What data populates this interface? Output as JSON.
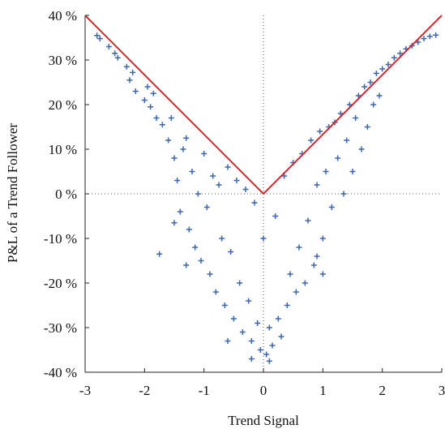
{
  "chart_data": {
    "type": "scatter",
    "title": "",
    "xlabel": "Trend Signal",
    "ylabel": "P&L of a Trend Follower",
    "xlim": [
      -3,
      3
    ],
    "ylim": [
      -40,
      40
    ],
    "x_ticks": [
      -3,
      -2,
      -1,
      0,
      1,
      2,
      3
    ],
    "x_tick_labels": [
      "-3",
      "-2",
      "-1",
      "0",
      "1",
      "2",
      "3"
    ],
    "y_ticks": [
      40,
      30,
      20,
      10,
      0,
      -10,
      -20,
      -30,
      -40
    ],
    "y_tick_labels": [
      "40 %",
      "30 %",
      "20 %",
      "10 %",
      "0 %",
      "-10 %",
      "-20 %",
      "-30 %",
      "-40 %"
    ],
    "grid": false,
    "zero_lines": true,
    "series": [
      {
        "marker": "plus",
        "color": "#3a67ad",
        "points": [
          [
            -2.8,
            35.5
          ],
          [
            -2.75,
            34.8
          ],
          [
            -2.6,
            33
          ],
          [
            -2.5,
            31.5
          ],
          [
            -2.45,
            30.5
          ],
          [
            -2.3,
            28.5
          ],
          [
            -2.25,
            25.5
          ],
          [
            -2.2,
            27.2
          ],
          [
            -2.15,
            23
          ],
          [
            -2.0,
            21
          ],
          [
            -1.95,
            24
          ],
          [
            -1.9,
            19.5
          ],
          [
            -1.85,
            22.5
          ],
          [
            -1.8,
            17
          ],
          [
            -1.7,
            15.5
          ],
          [
            -1.6,
            12
          ],
          [
            -1.55,
            17
          ],
          [
            -1.5,
            8
          ],
          [
            -1.45,
            3
          ],
          [
            -1.4,
            -4
          ],
          [
            -1.35,
            10
          ],
          [
            -1.3,
            12.5
          ],
          [
            -1.25,
            -8
          ],
          [
            -1.2,
            5
          ],
          [
            -1.15,
            -12
          ],
          [
            -1.1,
            0
          ],
          [
            -1.05,
            -15
          ],
          [
            -1.0,
            9
          ],
          [
            -0.95,
            -3
          ],
          [
            -0.9,
            -18
          ],
          [
            -0.85,
            4
          ],
          [
            -0.8,
            -22
          ],
          [
            -0.75,
            2
          ],
          [
            -0.7,
            -10
          ],
          [
            -0.65,
            -25
          ],
          [
            -0.6,
            6
          ],
          [
            -0.55,
            -13
          ],
          [
            -0.5,
            -28
          ],
          [
            -0.45,
            3
          ],
          [
            -0.4,
            -20
          ],
          [
            -0.35,
            -31
          ],
          [
            -0.3,
            1
          ],
          [
            -0.25,
            -24
          ],
          [
            -0.2,
            -33
          ],
          [
            -0.15,
            -2
          ],
          [
            -0.1,
            -29
          ],
          [
            -0.05,
            -35
          ],
          [
            0.0,
            -10
          ],
          [
            0.05,
            -36
          ],
          [
            0.1,
            -30
          ],
          [
            0.15,
            -34
          ],
          [
            0.2,
            -5
          ],
          [
            0.25,
            -28
          ],
          [
            0.3,
            -32
          ],
          [
            0.35,
            4
          ],
          [
            0.4,
            -25
          ],
          [
            0.45,
            -18
          ],
          [
            0.5,
            7
          ],
          [
            0.55,
            -22
          ],
          [
            0.6,
            -12
          ],
          [
            0.65,
            9
          ],
          [
            0.7,
            -20
          ],
          [
            0.75,
            -6
          ],
          [
            0.8,
            12
          ],
          [
            0.85,
            -16
          ],
          [
            0.9,
            2
          ],
          [
            0.95,
            14
          ],
          [
            1.0,
            -10
          ],
          [
            1.05,
            5
          ],
          [
            1.1,
            15
          ],
          [
            1.15,
            -3
          ],
          [
            1.2,
            16
          ],
          [
            1.25,
            8
          ],
          [
            1.3,
            18
          ],
          [
            1.35,
            0
          ],
          [
            1.4,
            12
          ],
          [
            1.45,
            20
          ],
          [
            1.5,
            5
          ],
          [
            1.55,
            17
          ],
          [
            1.6,
            22
          ],
          [
            1.65,
            10
          ],
          [
            1.7,
            24
          ],
          [
            1.75,
            15
          ],
          [
            1.8,
            25
          ],
          [
            1.85,
            20
          ],
          [
            1.9,
            27
          ],
          [
            1.95,
            22
          ],
          [
            2.0,
            28
          ],
          [
            2.1,
            29
          ],
          [
            2.2,
            30.5
          ],
          [
            2.3,
            31.5
          ],
          [
            2.4,
            32.5
          ],
          [
            2.5,
            33.2
          ],
          [
            2.6,
            34
          ],
          [
            2.7,
            34.8
          ],
          [
            2.8,
            35.3
          ],
          [
            2.9,
            35.6
          ],
          [
            -1.75,
            -13.5
          ],
          [
            -1.5,
            -6.5
          ],
          [
            -1.3,
            -16
          ],
          [
            -0.2,
            -37
          ],
          [
            0.1,
            -37.5
          ],
          [
            1.0,
            -18
          ],
          [
            0.9,
            -14
          ],
          [
            -0.6,
            -33
          ]
        ]
      }
    ],
    "envelope_line": {
      "color": "#d6262c",
      "points": [
        [
          -3,
          40
        ],
        [
          0,
          0
        ],
        [
          3,
          40
        ]
      ]
    }
  }
}
